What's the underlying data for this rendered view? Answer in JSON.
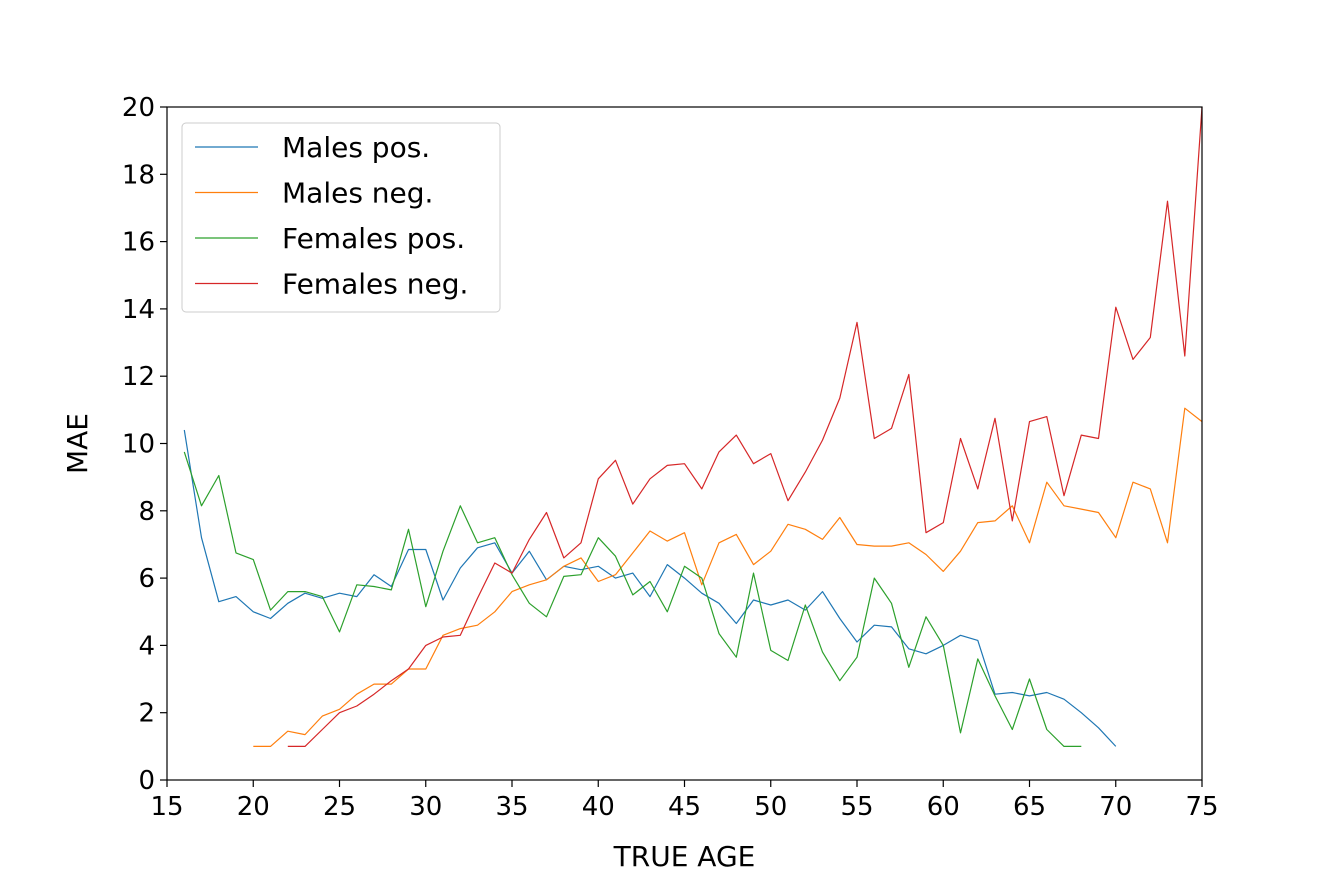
{
  "chart_data": {
    "type": "line",
    "title": "",
    "xlabel": "TRUE AGE",
    "ylabel": "MAE",
    "xlim": [
      15,
      75
    ],
    "ylim": [
      0,
      20
    ],
    "xticks": [
      15,
      20,
      25,
      30,
      35,
      40,
      45,
      50,
      55,
      60,
      65,
      70,
      75
    ],
    "yticks": [
      0,
      2,
      4,
      6,
      8,
      10,
      12,
      14,
      16,
      18,
      20
    ],
    "grid": false,
    "legend_position": "upper-left",
    "series": [
      {
        "name": "Males pos.",
        "color": "#1f77b4",
        "x": [
          16,
          17,
          18,
          19,
          20,
          21,
          22,
          23,
          24,
          25,
          26,
          27,
          28,
          29,
          30,
          31,
          32,
          33,
          34,
          35,
          36,
          37,
          38,
          39,
          40,
          41,
          42,
          43,
          44,
          45,
          46,
          47,
          48,
          49,
          50,
          51,
          52,
          53,
          54,
          55,
          56,
          57,
          58,
          59,
          60,
          61,
          62,
          63,
          64,
          65,
          66,
          67,
          68,
          69,
          70
        ],
        "y": [
          10.4,
          7.2,
          5.3,
          5.45,
          5.0,
          4.8,
          5.25,
          5.55,
          5.4,
          5.55,
          5.45,
          6.1,
          5.75,
          6.85,
          6.85,
          5.35,
          6.3,
          6.9,
          7.05,
          6.15,
          6.8,
          5.95,
          6.35,
          6.25,
          6.35,
          6.0,
          6.15,
          5.45,
          6.4,
          6.0,
          5.55,
          5.25,
          4.65,
          5.35,
          5.2,
          5.35,
          5.05,
          5.6,
          4.8,
          4.1,
          4.6,
          4.55,
          3.9,
          3.75,
          4.0,
          4.3,
          4.15,
          2.55,
          2.6,
          2.5,
          2.6,
          2.4,
          2.0,
          1.55,
          1.0
        ]
      },
      {
        "name": "Males neg.",
        "color": "#ff7f0e",
        "x": [
          20,
          21,
          22,
          23,
          24,
          25,
          26,
          27,
          28,
          29,
          30,
          31,
          32,
          33,
          34,
          35,
          36,
          37,
          38,
          39,
          40,
          41,
          42,
          43,
          44,
          45,
          46,
          47,
          48,
          49,
          50,
          51,
          52,
          53,
          54,
          55,
          56,
          57,
          58,
          59,
          60,
          61,
          62,
          63,
          64,
          65,
          66,
          67,
          68,
          69,
          70,
          71,
          72,
          73,
          74,
          75
        ],
        "y": [
          1.0,
          1.0,
          1.45,
          1.35,
          1.9,
          2.1,
          2.55,
          2.85,
          2.85,
          3.3,
          3.3,
          4.3,
          4.5,
          4.6,
          5.0,
          5.6,
          5.8,
          5.95,
          6.35,
          6.6,
          5.9,
          6.1,
          6.75,
          7.4,
          7.1,
          7.35,
          5.8,
          7.05,
          7.3,
          6.4,
          6.8,
          7.6,
          7.45,
          7.15,
          7.8,
          7.0,
          6.95,
          6.95,
          7.05,
          6.7,
          6.2,
          6.8,
          7.65,
          7.7,
          8.15,
          7.05,
          8.85,
          8.15,
          8.05,
          7.95,
          7.2,
          8.85,
          8.65,
          7.05,
          11.05,
          10.65
        ]
      },
      {
        "name": "Females pos.",
        "color": "#2ca02c",
        "x": [
          16,
          17,
          18,
          19,
          20,
          21,
          22,
          23,
          24,
          25,
          26,
          27,
          28,
          29,
          30,
          31,
          32,
          33,
          34,
          35,
          36,
          37,
          38,
          39,
          40,
          41,
          42,
          43,
          44,
          45,
          46,
          47,
          48,
          49,
          50,
          51,
          52,
          53,
          54,
          55,
          56,
          57,
          58,
          59,
          60,
          61,
          62,
          63,
          64,
          65,
          66,
          67,
          68
        ],
        "y": [
          9.75,
          8.15,
          9.05,
          6.75,
          6.55,
          5.05,
          5.6,
          5.6,
          5.45,
          4.4,
          5.8,
          5.75,
          5.65,
          7.45,
          5.15,
          6.8,
          8.15,
          7.05,
          7.2,
          6.1,
          5.25,
          4.85,
          6.05,
          6.1,
          7.2,
          6.65,
          5.5,
          5.9,
          5.0,
          6.35,
          6.0,
          4.35,
          3.65,
          6.15,
          3.85,
          3.55,
          5.2,
          3.8,
          2.95,
          3.65,
          6.0,
          5.25,
          3.35,
          4.85,
          4.0,
          1.4,
          3.6,
          2.5,
          1.5,
          3.0,
          1.5,
          1.0,
          1.0
        ]
      },
      {
        "name": "Females neg.",
        "color": "#d62728",
        "x": [
          22,
          23,
          24,
          25,
          26,
          27,
          28,
          29,
          30,
          31,
          32,
          33,
          34,
          35,
          36,
          37,
          38,
          39,
          40,
          41,
          42,
          43,
          44,
          45,
          46,
          47,
          48,
          49,
          50,
          51,
          52,
          53,
          54,
          55,
          56,
          57,
          58,
          59,
          60,
          61,
          62,
          63,
          64,
          65,
          66,
          67,
          68,
          69,
          70,
          71,
          72,
          73,
          74,
          75
        ],
        "y": [
          1.0,
          1.0,
          1.5,
          2.0,
          2.2,
          2.55,
          2.95,
          3.3,
          4.0,
          4.25,
          4.3,
          5.4,
          6.45,
          6.15,
          7.15,
          7.95,
          6.6,
          7.05,
          8.95,
          9.5,
          8.2,
          8.95,
          9.35,
          9.4,
          8.65,
          9.75,
          10.25,
          9.4,
          9.7,
          8.3,
          9.15,
          10.1,
          11.35,
          13.6,
          10.15,
          10.45,
          12.05,
          7.35,
          7.65,
          10.15,
          8.65,
          10.75,
          7.7,
          10.65,
          10.8,
          8.45,
          10.25,
          10.15,
          14.05,
          12.5,
          13.15,
          17.2,
          12.6,
          20.0
        ]
      }
    ]
  }
}
